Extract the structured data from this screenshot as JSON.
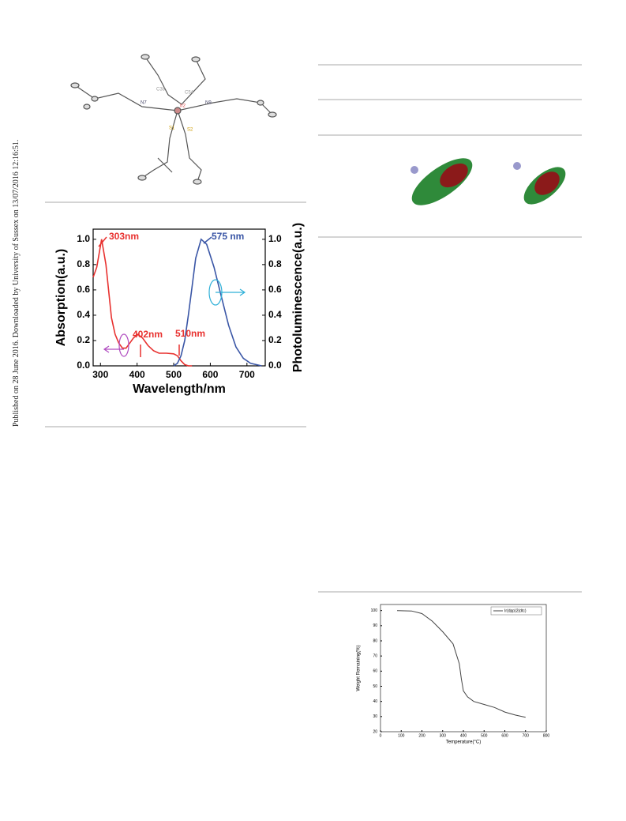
{
  "side_text": "Published on 28 June 2016. Downloaded by University of Sussex on 13/07/2016 12:16:51.",
  "molecule_labels": [
    "C38",
    "C54",
    "N7",
    "Ir2",
    "N9",
    "S1",
    "S2"
  ],
  "chart_data": [
    {
      "type": "line",
      "x_label": "Wavelength/nm",
      "y_label": "Absorption(a.u.)",
      "y2_label": "Photoluminescence(a.u.)",
      "x": [
        280,
        290,
        303,
        315,
        330,
        340,
        350,
        360,
        370,
        380,
        390,
        402,
        415,
        430,
        445,
        460,
        480,
        500,
        510,
        520,
        530,
        540,
        550,
        560,
        575,
        590,
        610,
        630,
        650,
        670,
        690,
        710,
        740
      ],
      "series": [
        {
          "name": "Absorption",
          "color": "#e8312f",
          "values": [
            0.7,
            0.78,
            1.0,
            0.8,
            0.38,
            0.25,
            0.18,
            0.14,
            0.14,
            0.18,
            0.22,
            0.25,
            0.22,
            0.16,
            0.12,
            0.1,
            0.1,
            0.095,
            0.08,
            0.04,
            0.01,
            0,
            0,
            null,
            null,
            null,
            null,
            null,
            null,
            null,
            null,
            null,
            null
          ]
        },
        {
          "name": "Photoluminescence",
          "color": "#3a56a6",
          "axis": "y2",
          "values": [
            null,
            null,
            null,
            null,
            null,
            null,
            null,
            null,
            null,
            null,
            null,
            null,
            null,
            null,
            null,
            null,
            null,
            0,
            0.02,
            0.08,
            0.2,
            0.4,
            0.62,
            0.85,
            1.0,
            0.96,
            0.78,
            0.55,
            0.32,
            0.15,
            0.06,
            0.02,
            0
          ]
        }
      ],
      "annotations": [
        {
          "text": "303nm",
          "color": "#e8312f"
        },
        {
          "text": "402nm",
          "color": "#e8312f"
        },
        {
          "text": "510nm",
          "color": "#e8312f"
        },
        {
          "text": "575 nm",
          "color": "#3a56a6"
        }
      ],
      "xlim": [
        280,
        750
      ],
      "xticks": [
        300,
        400,
        500,
        600,
        700
      ],
      "ylim": [
        0,
        1.08
      ],
      "yticks": [
        {
          "value": 0,
          "label": "0.0"
        },
        {
          "value": 0.2,
          "label": "0.2"
        },
        {
          "value": 0.4,
          "label": "0.4"
        },
        {
          "value": 0.6,
          "label": "0.6"
        },
        {
          "value": 0.8,
          "label": "0.8"
        },
        {
          "value": 1,
          "label": "1.0"
        }
      ],
      "y2lim": [
        0,
        1.08
      ],
      "y2ticks": [
        {
          "value": 0,
          "label": "0.0"
        },
        {
          "value": 0.2,
          "label": "0.2"
        },
        {
          "value": 0.4,
          "label": "0.4"
        },
        {
          "value": 0.6,
          "label": "0.6"
        },
        {
          "value": 0.8,
          "label": "0.8"
        },
        {
          "value": 1,
          "label": "1.0"
        }
      ]
    },
    {
      "type": "line",
      "x_label": "Temperature(°C)",
      "y_label": "Weight Remaining(%)",
      "x": [
        80,
        150,
        200,
        250,
        300,
        350,
        380,
        390,
        400,
        420,
        450,
        500,
        550,
        600,
        650,
        700
      ],
      "series": [
        {
          "name": "Ir(dpp)2(dtc)",
          "color": "#444444",
          "values": [
            100,
            99.7,
            98,
            93,
            86,
            78,
            65,
            55,
            47,
            43,
            40,
            38,
            36,
            33,
            31,
            29.5
          ]
        }
      ],
      "xlim": [
        0,
        800
      ],
      "xticks": [
        0,
        100,
        200,
        300,
        400,
        500,
        600,
        700,
        800
      ],
      "ylim": [
        20,
        104
      ],
      "yticks": [
        20,
        30,
        40,
        50,
        60,
        70,
        80,
        90,
        100
      ],
      "legend": "upper right"
    }
  ]
}
